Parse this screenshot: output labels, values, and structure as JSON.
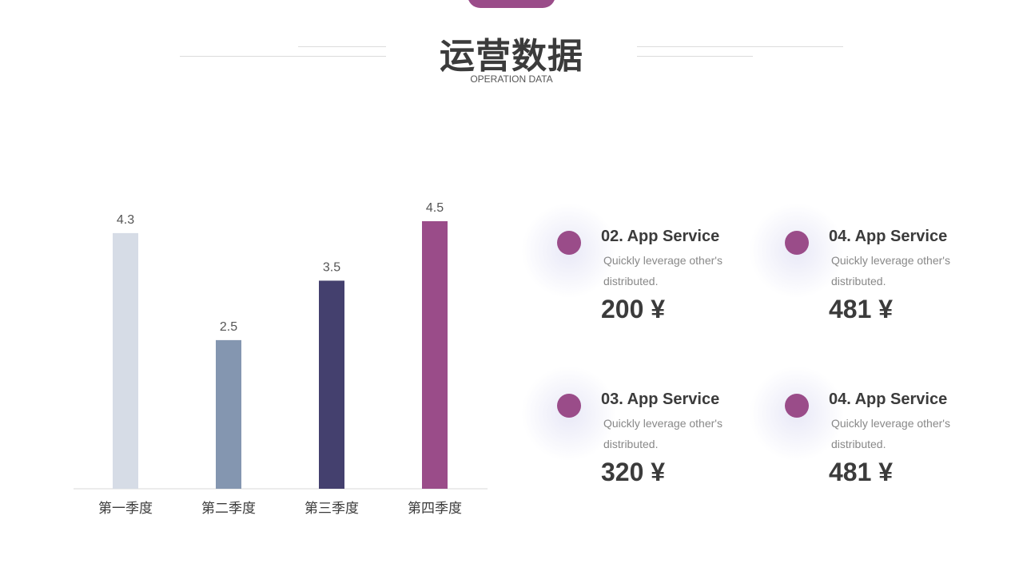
{
  "header": {
    "title": "运营数据",
    "subtitle": "OPERATION DATA"
  },
  "chart_data": {
    "type": "bar",
    "categories": [
      "第一季度",
      "第二季度",
      "第三季度",
      "第四季度"
    ],
    "values": [
      4.3,
      2.5,
      3.5,
      4.5
    ],
    "colors": [
      "#d6dce6",
      "#8496b0",
      "#44406e",
      "#9a4c89"
    ],
    "ylim": [
      0,
      4.5
    ]
  },
  "cards": [
    {
      "title": "02. App Service",
      "desc": "Quickly leverage other's distributed.",
      "value": "200 ¥"
    },
    {
      "title": "04. App Service",
      "desc": "Quickly leverage other's distributed.",
      "value": "481 ¥"
    },
    {
      "title": "03. App Service",
      "desc": "Quickly leverage other's distributed.",
      "value": "320 ¥"
    },
    {
      "title": "04. App Service",
      "desc": "Quickly leverage other's distributed.",
      "value": "481 ¥"
    }
  ],
  "colors": {
    "accent": "#9a4c89",
    "text": "#3b3b3b",
    "muted": "#888888"
  }
}
